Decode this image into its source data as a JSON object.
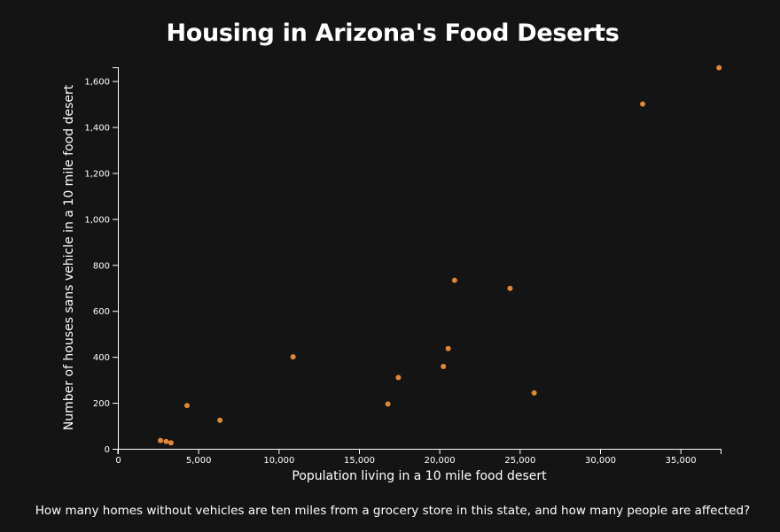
{
  "chart_data": {
    "type": "scatter",
    "title": "Housing in Arizona's Food Deserts",
    "xlabel": "Population living in a 10 mile food desert",
    "ylabel": "Number of houses sans vehicle in a 10 mile food desert",
    "xlim": [
      0,
      37500
    ],
    "ylim": [
      0,
      1660
    ],
    "x_ticks": [
      0,
      5000,
      10000,
      15000,
      20000,
      25000,
      30000,
      35000
    ],
    "x_tick_labels": [
      "0",
      "5,000",
      "10,000",
      "15,000",
      "20,000",
      "25,000",
      "30,000",
      "35,000"
    ],
    "y_ticks": [
      0,
      200,
      400,
      600,
      800,
      1000,
      1200,
      1400,
      1600
    ],
    "y_tick_labels": [
      "0",
      "200",
      "400",
      "600",
      "800",
      "1,000",
      "1,200",
      "1,400",
      "1,600"
    ],
    "grid": false,
    "point_color": "#e0883a",
    "points": [
      {
        "x": 2650,
        "y": 36
      },
      {
        "x": 3000,
        "y": 32
      },
      {
        "x": 3300,
        "y": 26
      },
      {
        "x": 4300,
        "y": 188
      },
      {
        "x": 6350,
        "y": 124
      },
      {
        "x": 10900,
        "y": 400
      },
      {
        "x": 16800,
        "y": 195
      },
      {
        "x": 17450,
        "y": 310
      },
      {
        "x": 20250,
        "y": 358
      },
      {
        "x": 20550,
        "y": 436
      },
      {
        "x": 20950,
        "y": 733
      },
      {
        "x": 24400,
        "y": 698
      },
      {
        "x": 25900,
        "y": 243
      },
      {
        "x": 32650,
        "y": 1500
      },
      {
        "x": 37400,
        "y": 1658
      }
    ]
  },
  "caption": "How many homes without vehicles are ten miles from a grocery store in this state, and how many people are affected?",
  "colors": {
    "background": "#141414",
    "axis": "#ffffff",
    "text": "#ffffff",
    "point": "#e0883a"
  }
}
